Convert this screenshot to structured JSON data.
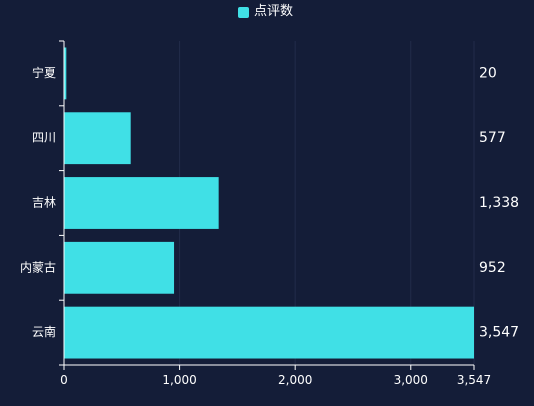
{
  "chart_data": {
    "type": "bar",
    "orientation": "horizontal",
    "categories": [
      "宁夏",
      "四川",
      "吉林",
      "内蒙古",
      "云南"
    ],
    "series": [
      {
        "name": "点评数",
        "values": [
          20,
          577,
          1338,
          952,
          3547
        ]
      }
    ],
    "value_labels": [
      "20",
      "577",
      "1,338",
      "952",
      "3,547"
    ],
    "xlim": [
      0,
      3547
    ],
    "x_ticks": [
      0,
      1000,
      2000,
      3000,
      3547
    ],
    "x_tick_labels": [
      "0",
      "1,000",
      "2,000",
      "3,000",
      "3,547"
    ],
    "grid": true,
    "legend": "top-center",
    "colors": {
      "bar": "#40e0e6",
      "background": "#141d38",
      "axis": "#ffffff",
      "grid": "#222c4a",
      "text": "#ffffff"
    }
  }
}
